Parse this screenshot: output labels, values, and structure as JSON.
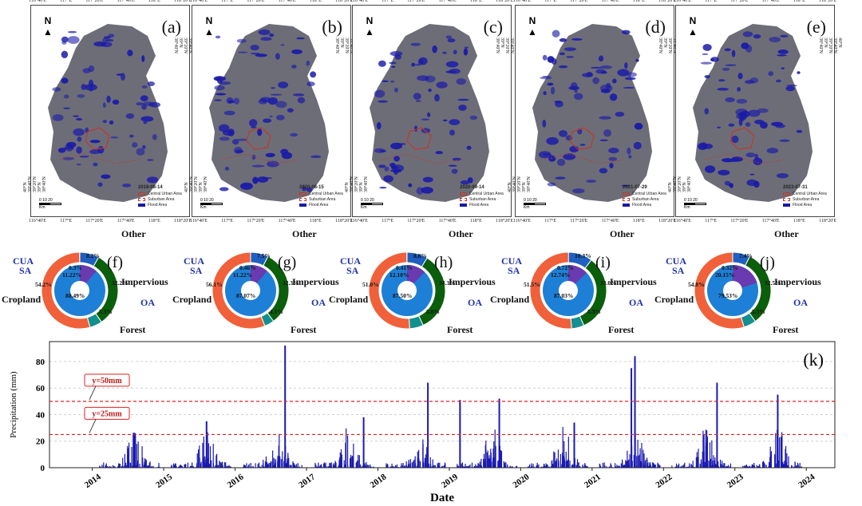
{
  "maps": [
    {
      "letter": "(a)",
      "date": "2018-08-14"
    },
    {
      "letter": "(b)",
      "date": "2020-08-15"
    },
    {
      "letter": "(c)",
      "date": "2020-09-14"
    },
    {
      "letter": "(d)",
      "date": "2021-07-29"
    },
    {
      "letter": "(e)",
      "date": "2023-07-31"
    }
  ],
  "map_common": {
    "lon_ticks": [
      "116°40'E",
      "117°E",
      "117°20'E",
      "117°40'E",
      "118°E",
      "118°20'E"
    ],
    "lat_ticks": [
      "40°N",
      "39°40'N",
      "39°20'N",
      "39°N",
      "38°40'N"
    ],
    "north": "N",
    "legend": [
      "Central Urban Area",
      "Suburban Area",
      "Flood Area"
    ],
    "scale": "0  10  20",
    "scale_unit": "Km",
    "colors": {
      "flood": "#1a1aa8",
      "land": "#6d6d78",
      "urban_border": "#c0392b"
    }
  },
  "donuts": [
    {
      "letter": "(f)",
      "outer": {
        "Other": "8.2%",
        "Impervious": "32.2%",
        "Forest": "5.3%",
        "Cropland": "54.2%"
      },
      "inner": {
        "CUA": "0.3%",
        "SA": "11.22%",
        "OA": "88.49%"
      }
    },
    {
      "letter": "(g)",
      "outer": {
        "Other": "7.5%",
        "Impervious": "32.3%",
        "Forest": "4.1%",
        "Cropland": "56.1%"
      },
      "inner": {
        "CUA": "0.46%",
        "SA": "11.22%",
        "OA": "87.07%"
      }
    },
    {
      "letter": "(h)",
      "outer": {
        "Other": "8.8%",
        "Impervious": "34.3%",
        "Forest": "5.8%",
        "Cropland": "51.0%"
      },
      "inner": {
        "CUA": "0.41%",
        "SA": "12.10%",
        "OA": "87.50%"
      }
    },
    {
      "letter": "(i)",
      "outer": {
        "Other": "10.3%",
        "Impervious": "33.0%",
        "Forest": "5.3%",
        "Cropland": "51.5%"
      },
      "inner": {
        "CUA": "0.72%",
        "SA": "12.74%",
        "OA": "87.03%"
      }
    },
    {
      "letter": "(j)",
      "outer": {
        "Other": "7.4%",
        "Impervious": "32.5%",
        "Forest": "5.3%",
        "Cropland": "54.8%"
      },
      "inner": {
        "CUA": "0.32%",
        "SA": "20.15%",
        "OA": "79.53%"
      }
    }
  ],
  "donut_labels": {
    "other": "Other",
    "impervious": "Impervious",
    "forest": "Forest",
    "cropland": "Cropland",
    "cua": "CUA",
    "sa": "SA",
    "oa": "OA"
  },
  "donut_colors": {
    "Other": "#1f5fbf",
    "Impervious": "#0b5e0b",
    "Forest": "#138f8f",
    "Cropland": "#f0603a",
    "inner": "#1e7fd6",
    "inner_sa": "#6a3ab0"
  },
  "chart_data": {
    "type": "bar",
    "title": "",
    "panel_letter": "(k)",
    "xlabel": "Date",
    "ylabel": "Precipitation (mm)",
    "x_ticks": [
      "2014",
      "2015",
      "2016",
      "2017",
      "2018",
      "2019",
      "2020",
      "2021",
      "2022",
      "2023",
      "2024"
    ],
    "xlim": [
      2013.4,
      2024.4
    ],
    "ylim": [
      0,
      95
    ],
    "y_ticks": [
      0,
      20,
      40,
      60,
      80
    ],
    "reference_lines": [
      {
        "y": 50,
        "label": "y=50mm"
      },
      {
        "y": 25,
        "label": "y=25mm"
      }
    ],
    "peaks": [
      {
        "year": 2016.7,
        "value": 92
      },
      {
        "year": 2018.7,
        "value": 64
      },
      {
        "year": 2019.15,
        "value": 51
      },
      {
        "year": 2019.7,
        "value": 52
      },
      {
        "year": 2021.6,
        "value": 84
      },
      {
        "year": 2021.55,
        "value": 75
      },
      {
        "year": 2022.75,
        "value": 64
      },
      {
        "year": 2023.6,
        "value": 55
      },
      {
        "year": 2017.8,
        "value": 38
      },
      {
        "year": 2015.6,
        "value": 35
      },
      {
        "year": 2014.6,
        "value": 26
      },
      {
        "year": 2020.75,
        "value": 34
      }
    ],
    "series_color": "#1a1ab0",
    "grid": true
  }
}
